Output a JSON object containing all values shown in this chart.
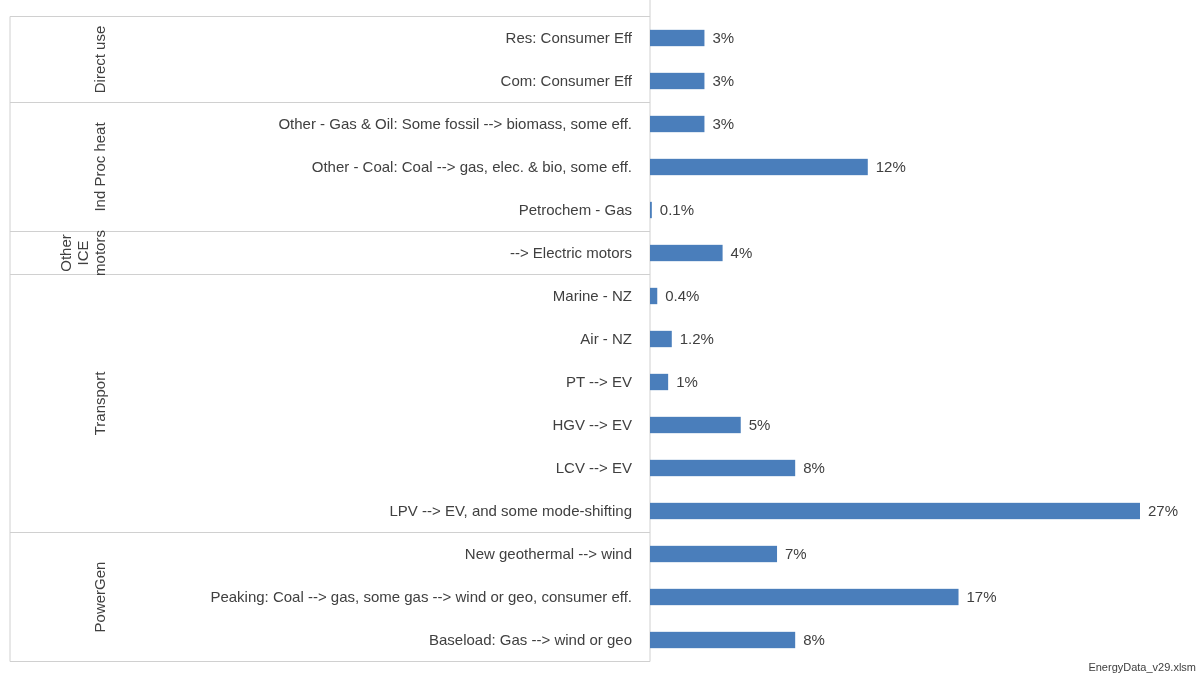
{
  "chart_data": {
    "type": "bar",
    "orientation": "horizontal",
    "categories": [
      "Res: Consumer Eff",
      "Com: Consumer Eff",
      "Other - Gas & Oil: Some fossil --> biomass, some eff.",
      "Other - Coal: Coal --> gas, elec. & bio, some eff.",
      "Petrochem - Gas",
      "--> Electric motors",
      "Marine - NZ",
      "Air - NZ",
      "PT --> EV",
      "HGV --> EV",
      "LCV --> EV",
      "LPV --> EV, and some mode-shifting",
      "New geothermal --> wind",
      "Peaking: Coal --> gas, some gas --> wind or geo, consumer eff.",
      "Baseload: Gas --> wind or geo"
    ],
    "values": [
      3,
      3,
      3,
      12,
      0.1,
      4,
      0.4,
      1.2,
      1,
      5,
      8,
      27,
      7,
      17,
      8
    ],
    "value_labels": [
      "3%",
      "3%",
      "3%",
      "12%",
      "0.1%",
      "4%",
      "0.4%",
      "1.2%",
      "1%",
      "5%",
      "8%",
      "27%",
      "7%",
      "17%",
      "8%"
    ],
    "color": "#4a7ebb",
    "annotations": [
      "Direct use",
      "Ind Proc heat",
      "Other ICE motors",
      "Transport",
      "PowerGen",
      "EnergyData_v29.xlsm"
    ]
  }
}
